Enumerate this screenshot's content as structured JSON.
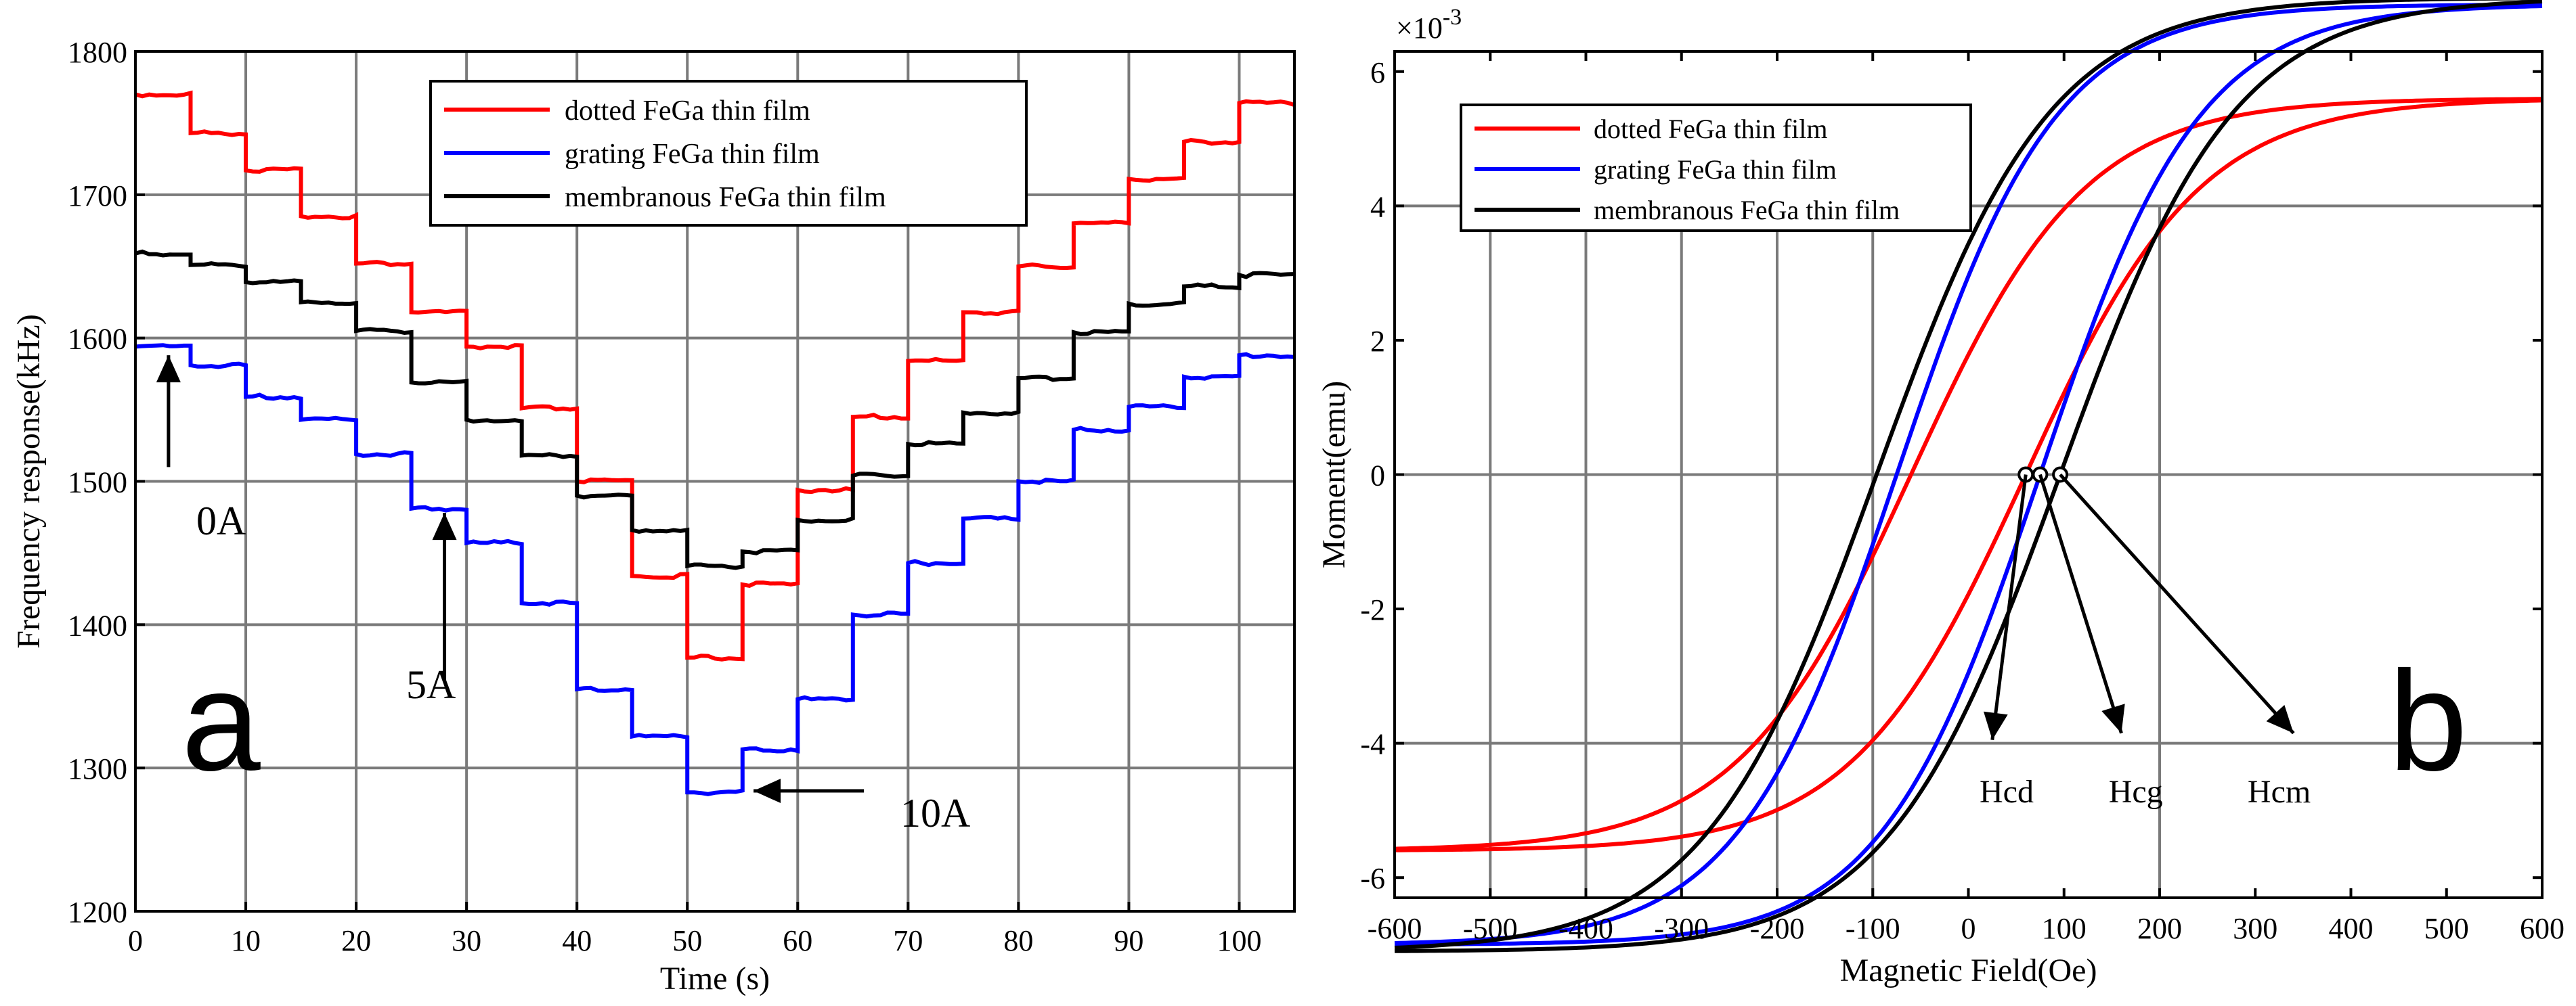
{
  "chart_data": [
    {
      "type": "line",
      "panel_label": "a",
      "xlabel": "Time (s)",
      "ylabel": "Frequency response(kHz)",
      "xlim": [
        0,
        105
      ],
      "ylim": [
        1200,
        1800
      ],
      "xticks": [
        0,
        10,
        20,
        30,
        40,
        50,
        60,
        70,
        80,
        90,
        100
      ],
      "yticks": [
        1200,
        1300,
        1400,
        1500,
        1600,
        1700,
        1800
      ],
      "legend": {
        "placement": "top-right",
        "entries": [
          {
            "name": "dotted FeGa thin film",
            "color": "#ff0000"
          },
          {
            "name": "grating FeGa thin film",
            "color": "#0000ff"
          },
          {
            "name": "membranous FeGa thin film",
            "color": "#000000"
          }
        ]
      },
      "step_times": [
        0,
        5,
        10,
        15,
        20,
        25,
        30,
        35,
        40,
        45,
        50,
        55,
        60,
        65,
        70,
        75,
        80,
        85,
        90,
        95,
        100,
        105
      ],
      "series": [
        {
          "name": "dotted FeGa thin film",
          "color": "#ff0000",
          "values": [
            1770,
            1743,
            1717,
            1685,
            1652,
            1618,
            1594,
            1551,
            1500,
            1434,
            1377,
            1428,
            1494,
            1545,
            1584,
            1618,
            1650,
            1680,
            1711,
            1737,
            1764
          ]
        },
        {
          "name": "grating FeGa thin film",
          "color": "#0000ff",
          "values": [
            1594,
            1581,
            1559,
            1543,
            1519,
            1481,
            1457,
            1415,
            1355,
            1322,
            1283,
            1313,
            1348,
            1407,
            1443,
            1474,
            1500,
            1536,
            1552,
            1573,
            1588
          ]
        },
        {
          "name": "membranous FeGa thin film",
          "color": "#000000",
          "values": [
            1659,
            1651,
            1639,
            1625,
            1605,
            1569,
            1543,
            1518,
            1490,
            1466,
            1441,
            1451,
            1473,
            1504,
            1526,
            1548,
            1572,
            1604,
            1624,
            1636,
            1644
          ]
        }
      ],
      "annotations": [
        {
          "text": "0A",
          "x": 3,
          "y": 1533
        },
        {
          "text": "5A",
          "x": 27.5,
          "y": 1425
        },
        {
          "text": "10A",
          "x": 62.5,
          "y": 1284
        }
      ]
    },
    {
      "type": "line",
      "panel_label": "b",
      "xlabel": "Magnetic Field(Oe)",
      "ylabel": "Moment(emu)",
      "y_multiplier": "×10",
      "y_multiplier_exp": "-3",
      "xlim": [
        -600,
        600
      ],
      "ylim": [
        -6.3,
        6.3
      ],
      "xticks": [
        -600,
        -500,
        -400,
        -300,
        -200,
        -100,
        0,
        100,
        200,
        300,
        400,
        500,
        600
      ],
      "yticks": [
        -6,
        -4,
        -2,
        0,
        2,
        4,
        6
      ],
      "legend": {
        "placement": "top-left",
        "entries": [
          {
            "name": "dotted FeGa thin film",
            "color": "#ff0000"
          },
          {
            "name": "grating FeGa thin film",
            "color": "#0000ff"
          },
          {
            "name": "membranous FeGa thin film",
            "color": "#000000"
          }
        ]
      },
      "series": [
        {
          "name": "dotted FeGa thin film",
          "color": "#ff0000",
          "sat": 5.6,
          "slope": 0.0055,
          "hc": 60
        },
        {
          "name": "grating FeGa thin film",
          "color": "#0000ff",
          "sat": 7.0,
          "slope": 0.006,
          "hc": 75
        },
        {
          "name": "membranous FeGa thin film",
          "color": "#000000",
          "sat": 7.1,
          "slope": 0.0055,
          "hc": 96
        }
      ],
      "coercivity_labels": [
        {
          "text": "Hcd",
          "x": 40,
          "y": -4.7
        },
        {
          "text": "Hcg",
          "x": 175,
          "y": -4.7
        },
        {
          "text": "Hcm",
          "x": 325,
          "y": -4.7
        }
      ]
    }
  ]
}
